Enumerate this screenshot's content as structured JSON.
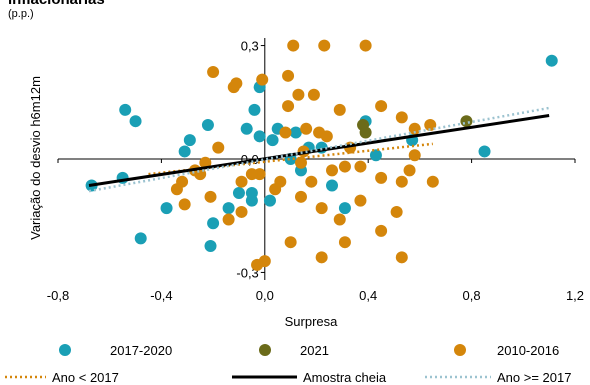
{
  "chart_data": {
    "type": "scatter",
    "title": "inflacionárias",
    "subtitle": "(p.p.)",
    "x_label": "Surpresa",
    "y_label": "Variação do desvio h6m12m",
    "xlim": [
      -0.8,
      1.2
    ],
    "ylim": [
      -0.32,
      0.32
    ],
    "xticks": [
      {
        "value": -0.8,
        "label": "-0,8"
      },
      {
        "value": -0.4,
        "label": "-0,4"
      },
      {
        "value": 0,
        "label": "0,0"
      },
      {
        "value": 0.4,
        "label": "0,4"
      },
      {
        "value": 0.8,
        "label": "0,8"
      },
      {
        "value": 1.2,
        "label": "1,2"
      }
    ],
    "yticks": [
      {
        "value": -0.3,
        "label": "-0,3"
      },
      {
        "value": 0,
        "label": "0,0"
      },
      {
        "value": 0.3,
        "label": "0,3"
      }
    ],
    "series": [
      {
        "name": "2017-2020",
        "type": "scatter",
        "color": "#1a9fb5",
        "x": [
          -0.67,
          -0.55,
          -0.54,
          -0.5,
          -0.38,
          -0.48,
          -0.22,
          -0.31,
          -0.29,
          -0.2,
          -0.21,
          -0.14,
          -0.1,
          -0.07,
          -0.02,
          -0.04,
          -0.02,
          -0.05,
          -0.05,
          0.02,
          0.03,
          0.05,
          0.1,
          0.12,
          0.14,
          0.17,
          0.22,
          0.26,
          0.31,
          0.39,
          0.43,
          0.57,
          0.85,
          1.11
        ],
        "values": [
          -0.07,
          -0.05,
          0.13,
          0.1,
          -0.13,
          -0.21,
          0.09,
          0.02,
          0.05,
          -0.17,
          -0.23,
          -0.13,
          -0.09,
          0.08,
          0.19,
          0.13,
          0.06,
          -0.09,
          -0.11,
          -0.11,
          0.05,
          0.08,
          0,
          0.07,
          -0.03,
          0.03,
          0.03,
          -0.07,
          -0.13,
          0.1,
          0.01,
          0.05,
          0.02,
          0.26
        ]
      },
      {
        "name": "2021",
        "type": "scatter",
        "color": "#6b6b1a",
        "x": [
          0.38,
          0.39,
          0.78
        ],
        "values": [
          0.09,
          0.07,
          0.1
        ]
      },
      {
        "name": "2010-2016",
        "type": "scatter",
        "color": "#d4860b",
        "x": [
          -0.2,
          -0.12,
          -0.11,
          -0.01,
          0.11,
          0.23,
          0.39,
          0.09,
          0.09,
          0.13,
          0.19,
          0.21,
          0.29,
          0.08,
          0.16,
          0.15,
          0.24,
          0.31,
          0.37,
          0.45,
          0.56,
          0.65,
          0.53,
          0.45,
          0.58,
          0.64,
          0,
          -0.03,
          0.1,
          0.22,
          0.29,
          0.37,
          0.45,
          0.53,
          0.22,
          0.14,
          0.04,
          0.06,
          -0.02,
          -0.05,
          -0.09,
          -0.21,
          -0.31,
          -0.34,
          -0.32,
          -0.27,
          -0.23,
          -0.18,
          -0.25,
          0.14,
          0.18,
          0.26,
          0.33,
          0.53,
          0.58,
          0.51,
          0.31,
          -0.09,
          -0.14
        ],
        "values": [
          0.23,
          0.19,
          0.2,
          0.21,
          0.3,
          0.3,
          0.3,
          0.22,
          0.14,
          0.17,
          0.17,
          0.07,
          0.13,
          0.07,
          0.08,
          0.02,
          0.06,
          -0.02,
          -0.02,
          -0.05,
          -0.03,
          -0.06,
          0.11,
          0.14,
          0.08,
          0.09,
          -0.27,
          -0.28,
          -0.22,
          -0.26,
          -0.16,
          -0.11,
          -0.19,
          -0.26,
          -0.13,
          -0.1,
          -0.08,
          -0.06,
          -0.04,
          -0.04,
          -0.06,
          -0.1,
          -0.12,
          -0.08,
          -0.06,
          -0.03,
          -0.01,
          0.03,
          -0.04,
          -0.01,
          -0.06,
          -0.03,
          0.03,
          -0.06,
          0.01,
          -0.14,
          -0.22,
          -0.14,
          -0.16
        ]
      },
      {
        "name": "Ano < 2017",
        "type": "line",
        "style": "dotted",
        "color": "#d4860b",
        "x": [
          -0.45,
          0.65
        ],
        "values": [
          -0.04,
          0.04
        ]
      },
      {
        "name": "Amostra cheia",
        "type": "line",
        "style": "solid",
        "color": "#000000",
        "x": [
          -0.68,
          1.1
        ],
        "values": [
          -0.07,
          0.115
        ]
      },
      {
        "name": "Ano >= 2017",
        "type": "line",
        "style": "dotted",
        "color": "#9cc3d0",
        "x": [
          -0.68,
          1.1
        ],
        "values": [
          -0.085,
          0.135
        ]
      }
    ]
  }
}
